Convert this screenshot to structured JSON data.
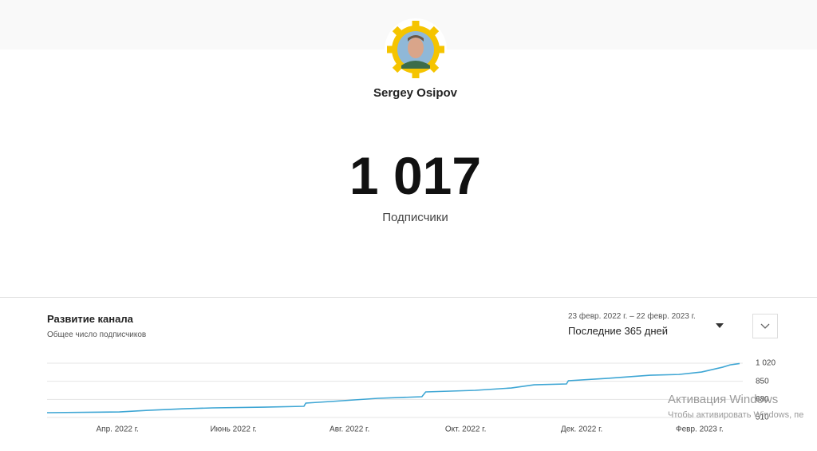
{
  "profile": {
    "name": "Sergey Osipov",
    "subscribers": "1 017",
    "subscribers_label": "Подписчики"
  },
  "chart_data": {
    "type": "line",
    "title": "Развитие канала",
    "subtitle": "Общее число подписчиков",
    "date_range": "23 февр. 2022 г. – 22 февр. 2023 г.",
    "period": "Последние 365 дней",
    "x": [
      0,
      38,
      53,
      72,
      87,
      114,
      135,
      136,
      149,
      174,
      197,
      199,
      225,
      244,
      256,
      273,
      274,
      294,
      317,
      332,
      344,
      355,
      359,
      364
    ],
    "series": [
      {
        "name": "Подписчики",
        "color": "#3ea6d4",
        "values": [
          555,
          562,
          577,
          592,
          600,
          607,
          615,
          645,
          660,
          690,
          705,
          750,
          765,
          787,
          817,
          825,
          855,
          877,
          907,
          914,
          937,
          982,
          1004,
          1017
        ]
      }
    ],
    "xlim": [
      0,
      364
    ],
    "xticks": [
      {
        "value": 37,
        "label": "Апр. 2022 г."
      },
      {
        "value": 98,
        "label": "Июнь 2022 г."
      },
      {
        "value": 159,
        "label": "Авг. 2022 г."
      },
      {
        "value": 220,
        "label": "Окт. 2022 г."
      },
      {
        "value": 281,
        "label": "Дек. 2022 г."
      },
      {
        "value": 343,
        "label": "Февр. 2023 г."
      }
    ],
    "ylim": [
      510,
      1020
    ],
    "yticks": [
      510,
      680,
      850,
      {
        "value": 1020,
        "label": "1 020"
      }
    ],
    "grid": true
  },
  "watermark": {
    "title": "Активация Windows",
    "text": "Чтобы активировать Windows, пе"
  }
}
